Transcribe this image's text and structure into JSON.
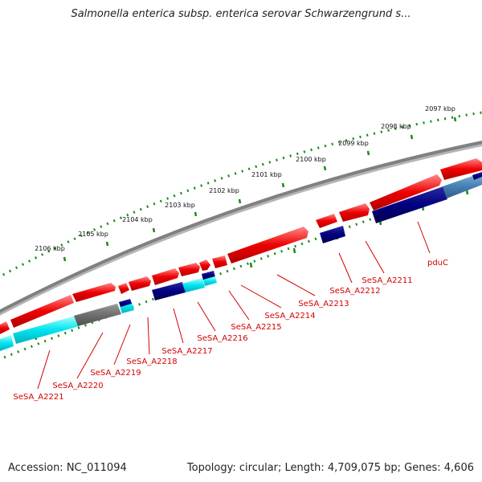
{
  "title": "Salmonella enterica subsp. enterica serovar Schwarzengrund s...",
  "footer": {
    "accession": "Accession: NC_011094",
    "topology": "Topology: circular; Length: 4,709,075 bp; Genes: 4,606"
  },
  "colors": {
    "backbone": "#808080",
    "forward_gene": "#ee0000",
    "reverse_gene": "#000080",
    "cyan_feature": "#00e5ee",
    "gray_feature": "#6e6e6e",
    "steelblue_feature": "#4682b4",
    "ticks": "#1a8a1a",
    "label": "#d40000"
  },
  "ruler_labels": [
    "2097 kbp",
    "2098 kbp",
    "2099 kbp",
    "2100 kbp",
    "2101 kbp",
    "2102 kbp",
    "2103 kbp",
    "2104 kbp",
    "2105 kbp",
    "2106 kbp"
  ],
  "gene_labels": [
    "pduC",
    "SeSA_A2211",
    "SeSA_A2212",
    "SeSA_A2213",
    "SeSA_A2214",
    "SeSA_A2215",
    "SeSA_A2216",
    "SeSA_A2217",
    "SeSA_A2218",
    "SeSA_A2219",
    "SeSA_A2220",
    "SeSA_A2221"
  ]
}
